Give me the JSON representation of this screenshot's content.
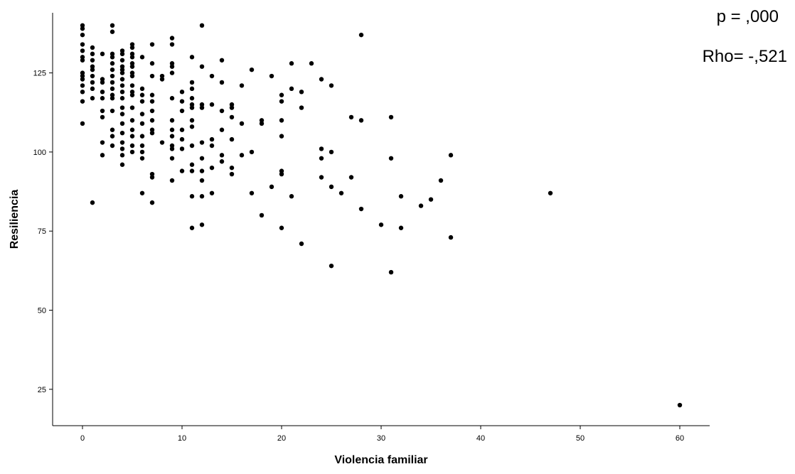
{
  "chart_data": {
    "type": "scatter",
    "title": "",
    "xlabel": "Violencia familiar",
    "ylabel": "Resiliencia",
    "xlim": [
      -3,
      63
    ],
    "ylim": [
      13.5,
      144
    ],
    "x_ticks": [
      0,
      10,
      20,
      30,
      40,
      50,
      60
    ],
    "y_ticks": [
      25,
      50,
      75,
      100,
      125
    ],
    "grid": false,
    "legend": "none",
    "point_color": "#000000",
    "annotations": [
      "p = ,000",
      "Rho= -,521"
    ],
    "points": [
      [
        0,
        140
      ],
      [
        0,
        139
      ],
      [
        0,
        137
      ],
      [
        0,
        134
      ],
      [
        0,
        132
      ],
      [
        0,
        130
      ],
      [
        0,
        129
      ],
      [
        0,
        125
      ],
      [
        0,
        124
      ],
      [
        0,
        123
      ],
      [
        0,
        121
      ],
      [
        0,
        119
      ],
      [
        0,
        116
      ],
      [
        0,
        109
      ],
      [
        1,
        133
      ],
      [
        1,
        131
      ],
      [
        1,
        129
      ],
      [
        1,
        127
      ],
      [
        1,
        126
      ],
      [
        1,
        124
      ],
      [
        1,
        122
      ],
      [
        1,
        120
      ],
      [
        1,
        117
      ],
      [
        1,
        84
      ],
      [
        2,
        131
      ],
      [
        2,
        123
      ],
      [
        2,
        122
      ],
      [
        2,
        119
      ],
      [
        2,
        117
      ],
      [
        2,
        113
      ],
      [
        2,
        111
      ],
      [
        2,
        103
      ],
      [
        2,
        99
      ],
      [
        3,
        140
      ],
      [
        3,
        138
      ],
      [
        3,
        131
      ],
      [
        3,
        130
      ],
      [
        3,
        128
      ],
      [
        3,
        126
      ],
      [
        3,
        124
      ],
      [
        3,
        122
      ],
      [
        3,
        120
      ],
      [
        3,
        118
      ],
      [
        3,
        117
      ],
      [
        3,
        113
      ],
      [
        3,
        107
      ],
      [
        3,
        105
      ],
      [
        3,
        102
      ],
      [
        4,
        132
      ],
      [
        4,
        131
      ],
      [
        4,
        129
      ],
      [
        4,
        127
      ],
      [
        4,
        126
      ],
      [
        4,
        125
      ],
      [
        4,
        123
      ],
      [
        4,
        121
      ],
      [
        4,
        119
      ],
      [
        4,
        117
      ],
      [
        4,
        114
      ],
      [
        4,
        112
      ],
      [
        4,
        109
      ],
      [
        4,
        106
      ],
      [
        4,
        103
      ],
      [
        4,
        101
      ],
      [
        4,
        99
      ],
      [
        4,
        96
      ],
      [
        5,
        134
      ],
      [
        5,
        133
      ],
      [
        5,
        131
      ],
      [
        5,
        130
      ],
      [
        5,
        128
      ],
      [
        5,
        127
      ],
      [
        5,
        125
      ],
      [
        5,
        124
      ],
      [
        5,
        121
      ],
      [
        5,
        119
      ],
      [
        5,
        118
      ],
      [
        5,
        114
      ],
      [
        5,
        110
      ],
      [
        5,
        107
      ],
      [
        5,
        105
      ],
      [
        5,
        102
      ],
      [
        5,
        100
      ],
      [
        6,
        130
      ],
      [
        6,
        120
      ],
      [
        6,
        118
      ],
      [
        6,
        116
      ],
      [
        6,
        112
      ],
      [
        6,
        109
      ],
      [
        6,
        105
      ],
      [
        6,
        102
      ],
      [
        6,
        100
      ],
      [
        6,
        98
      ],
      [
        6,
        87
      ],
      [
        7,
        134
      ],
      [
        7,
        128
      ],
      [
        7,
        124
      ],
      [
        7,
        118
      ],
      [
        7,
        116
      ],
      [
        7,
        113
      ],
      [
        7,
        110
      ],
      [
        7,
        107
      ],
      [
        7,
        106
      ],
      [
        7,
        93
      ],
      [
        7,
        92
      ],
      [
        7,
        84
      ],
      [
        8,
        124
      ],
      [
        8,
        123
      ],
      [
        8,
        103
      ],
      [
        9,
        136
      ],
      [
        9,
        134
      ],
      [
        9,
        128
      ],
      [
        9,
        127
      ],
      [
        9,
        125
      ],
      [
        9,
        117
      ],
      [
        9,
        110
      ],
      [
        9,
        107
      ],
      [
        9,
        105
      ],
      [
        9,
        102
      ],
      [
        9,
        101
      ],
      [
        9,
        98
      ],
      [
        9,
        91
      ],
      [
        10,
        119
      ],
      [
        10,
        116
      ],
      [
        10,
        113
      ],
      [
        10,
        107
      ],
      [
        10,
        104
      ],
      [
        10,
        101
      ],
      [
        10,
        94
      ],
      [
        11,
        130
      ],
      [
        11,
        122
      ],
      [
        11,
        120
      ],
      [
        11,
        117
      ],
      [
        11,
        115
      ],
      [
        11,
        114
      ],
      [
        11,
        110
      ],
      [
        11,
        108
      ],
      [
        11,
        102
      ],
      [
        11,
        96
      ],
      [
        11,
        94
      ],
      [
        11,
        86
      ],
      [
        11,
        76
      ],
      [
        12,
        140
      ],
      [
        12,
        127
      ],
      [
        12,
        115
      ],
      [
        12,
        114
      ],
      [
        12,
        103
      ],
      [
        12,
        98
      ],
      [
        12,
        94
      ],
      [
        12,
        91
      ],
      [
        12,
        86
      ],
      [
        12,
        77
      ],
      [
        13,
        124
      ],
      [
        13,
        115
      ],
      [
        13,
        104
      ],
      [
        13,
        102
      ],
      [
        13,
        95
      ],
      [
        13,
        87
      ],
      [
        14,
        129
      ],
      [
        14,
        122
      ],
      [
        14,
        113
      ],
      [
        14,
        107
      ],
      [
        14,
        99
      ],
      [
        14,
        97
      ],
      [
        15,
        115
      ],
      [
        15,
        114
      ],
      [
        15,
        111
      ],
      [
        15,
        104
      ],
      [
        15,
        95
      ],
      [
        15,
        93
      ],
      [
        16,
        121
      ],
      [
        16,
        109
      ],
      [
        16,
        99
      ],
      [
        17,
        126
      ],
      [
        17,
        100
      ],
      [
        17,
        87
      ],
      [
        18,
        110
      ],
      [
        18,
        109
      ],
      [
        18,
        80
      ],
      [
        19,
        124
      ],
      [
        19,
        89
      ],
      [
        20,
        118
      ],
      [
        20,
        116
      ],
      [
        20,
        110
      ],
      [
        20,
        105
      ],
      [
        20,
        94
      ],
      [
        20,
        93
      ],
      [
        20,
        76
      ],
      [
        21,
        128
      ],
      [
        21,
        120
      ],
      [
        21,
        86
      ],
      [
        22,
        119
      ],
      [
        22,
        114
      ],
      [
        22,
        71
      ],
      [
        23,
        128
      ],
      [
        24,
        123
      ],
      [
        24,
        101
      ],
      [
        24,
        98
      ],
      [
        24,
        92
      ],
      [
        25,
        121
      ],
      [
        25,
        100
      ],
      [
        25,
        89
      ],
      [
        25,
        64
      ],
      [
        26,
        87
      ],
      [
        27,
        111
      ],
      [
        27,
        92
      ],
      [
        28,
        137
      ],
      [
        28,
        110
      ],
      [
        28,
        82
      ],
      [
        30,
        77
      ],
      [
        31,
        111
      ],
      [
        31,
        98
      ],
      [
        31,
        62
      ],
      [
        32,
        86
      ],
      [
        32,
        76
      ],
      [
        34,
        83
      ],
      [
        35,
        85
      ],
      [
        36,
        91
      ],
      [
        37,
        99
      ],
      [
        37,
        73
      ],
      [
        47,
        87
      ],
      [
        60,
        20
      ]
    ]
  }
}
